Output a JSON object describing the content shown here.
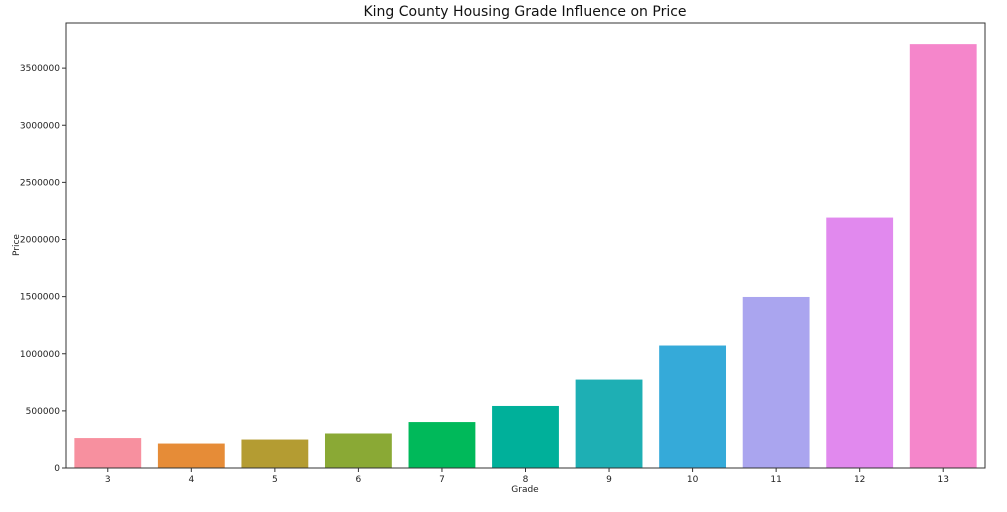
{
  "chart_data": {
    "type": "bar",
    "title": "King County Housing Grade Influence on Price",
    "xlabel": "Grade",
    "ylabel": "Price",
    "categories": [
      "3",
      "4",
      "5",
      "6",
      "7",
      "8",
      "9",
      "10",
      "11",
      "12",
      "13"
    ],
    "values": [
      262000,
      214000,
      249000,
      302000,
      402000,
      543000,
      774000,
      1072000,
      1497000,
      2192000,
      3710000
    ],
    "colors": [
      "#f7909f",
      "#e68c37",
      "#b49c32",
      "#8aa935",
      "#00b95a",
      "#00b09a",
      "#1eafb4",
      "#35aad9",
      "#aaa5ef",
      "#e189ee",
      "#f586cb"
    ],
    "yticks": [
      0,
      500000,
      1000000,
      1500000,
      2000000,
      2500000,
      3000000,
      3500000
    ],
    "ytick_labels": [
      "0",
      "500000",
      "1000000",
      "1500000",
      "2000000",
      "2500000",
      "3000000",
      "3500000"
    ],
    "ylim": [
      0,
      3895000
    ],
    "grid": false,
    "legend": "none"
  }
}
